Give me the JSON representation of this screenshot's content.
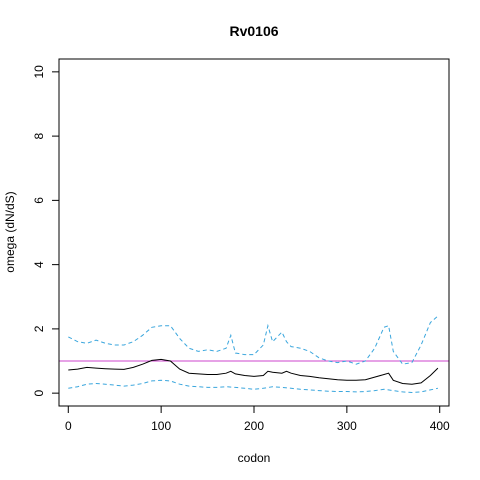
{
  "chart_data": {
    "type": "line",
    "title": "Rv0106",
    "xlabel": "codon",
    "ylabel": "omega (dN/dS)",
    "xlim": [
      -10,
      410
    ],
    "ylim": [
      -0.4,
      10.4
    ],
    "xticks": [
      0,
      100,
      200,
      300,
      400
    ],
    "yticks": [
      0,
      2,
      4,
      6,
      8,
      10
    ],
    "grid": false,
    "legend": "none",
    "reference_line": {
      "y": 1,
      "color": "#cc44cc"
    },
    "series": [
      {
        "role": "estimate",
        "color": "#000000",
        "dash": "solid",
        "x": [
          0,
          10,
          20,
          30,
          40,
          50,
          60,
          70,
          80,
          90,
          100,
          110,
          120,
          130,
          140,
          150,
          160,
          170,
          175,
          180,
          190,
          200,
          210,
          215,
          220,
          230,
          235,
          240,
          250,
          260,
          270,
          280,
          290,
          300,
          310,
          320,
          330,
          340,
          345,
          350,
          360,
          370,
          380,
          390,
          398
        ],
        "y": [
          0.72,
          0.75,
          0.8,
          0.78,
          0.76,
          0.75,
          0.74,
          0.8,
          0.9,
          1.02,
          1.05,
          1.0,
          0.75,
          0.62,
          0.6,
          0.58,
          0.58,
          0.62,
          0.68,
          0.6,
          0.55,
          0.52,
          0.55,
          0.68,
          0.65,
          0.62,
          0.68,
          0.62,
          0.55,
          0.52,
          0.48,
          0.45,
          0.42,
          0.4,
          0.4,
          0.42,
          0.5,
          0.58,
          0.62,
          0.4,
          0.3,
          0.28,
          0.32,
          0.55,
          0.78
        ]
      },
      {
        "role": "upper bound",
        "color": "#3aa6dd",
        "dash": "dashed",
        "x": [
          0,
          10,
          20,
          30,
          40,
          50,
          60,
          70,
          80,
          90,
          100,
          110,
          115,
          120,
          130,
          140,
          150,
          160,
          170,
          175,
          180,
          190,
          200,
          210,
          215,
          220,
          230,
          235,
          240,
          250,
          260,
          270,
          280,
          290,
          300,
          310,
          320,
          330,
          340,
          345,
          350,
          360,
          370,
          380,
          390,
          398
        ],
        "y": [
          1.75,
          1.6,
          1.55,
          1.65,
          1.55,
          1.5,
          1.5,
          1.6,
          1.8,
          2.05,
          2.1,
          2.1,
          1.9,
          1.7,
          1.4,
          1.3,
          1.35,
          1.3,
          1.4,
          1.8,
          1.25,
          1.2,
          1.2,
          1.5,
          2.1,
          1.6,
          1.9,
          1.6,
          1.45,
          1.4,
          1.3,
          1.1,
          1.0,
          0.95,
          1.0,
          0.9,
          1.0,
          1.4,
          2.05,
          2.1,
          1.3,
          0.9,
          0.95,
          1.5,
          2.2,
          2.4
        ]
      },
      {
        "role": "lower bound",
        "color": "#3aa6dd",
        "dash": "dashed",
        "x": [
          0,
          10,
          20,
          30,
          40,
          50,
          60,
          70,
          80,
          90,
          100,
          110,
          120,
          130,
          140,
          150,
          160,
          170,
          180,
          190,
          200,
          210,
          220,
          230,
          240,
          250,
          260,
          270,
          280,
          290,
          300,
          310,
          320,
          330,
          340,
          350,
          360,
          370,
          380,
          390,
          398
        ],
        "y": [
          0.15,
          0.2,
          0.28,
          0.3,
          0.28,
          0.25,
          0.22,
          0.25,
          0.3,
          0.38,
          0.4,
          0.38,
          0.28,
          0.22,
          0.2,
          0.18,
          0.18,
          0.2,
          0.18,
          0.15,
          0.12,
          0.15,
          0.2,
          0.18,
          0.15,
          0.12,
          0.1,
          0.08,
          0.06,
          0.05,
          0.05,
          0.04,
          0.05,
          0.08,
          0.12,
          0.08,
          0.04,
          0.02,
          0.04,
          0.1,
          0.15
        ]
      }
    ]
  }
}
